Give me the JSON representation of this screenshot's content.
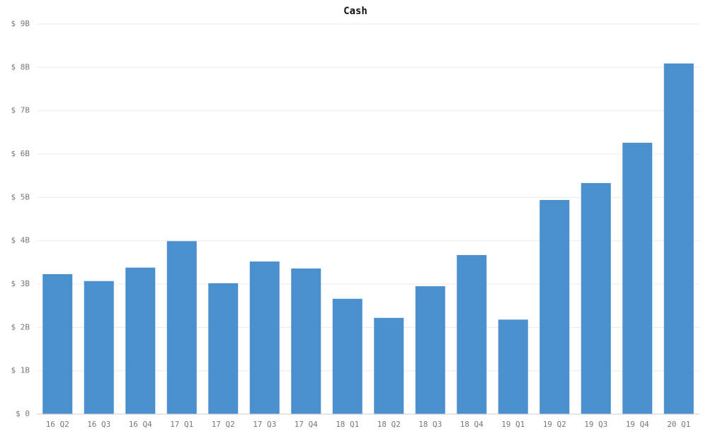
{
  "chart_data": {
    "type": "bar",
    "title": "Cash",
    "categories": [
      "16 Q2",
      "16 Q3",
      "16 Q4",
      "17 Q1",
      "17 Q2",
      "17 Q3",
      "17 Q4",
      "18 Q1",
      "18 Q2",
      "18 Q3",
      "18 Q4",
      "19 Q1",
      "19 Q2",
      "19 Q3",
      "19 Q4",
      "20 Q1"
    ],
    "values": [
      3.23,
      3.07,
      3.38,
      3.99,
      3.02,
      3.52,
      3.36,
      2.66,
      2.22,
      2.95,
      3.67,
      2.18,
      4.94,
      5.33,
      6.26,
      8.09
    ],
    "color": "#4a8fce",
    "ylim": [
      0,
      9
    ],
    "yticks": [
      {
        "value": 0,
        "label": "$ 0"
      },
      {
        "value": 1,
        "label": "$ 1B"
      },
      {
        "value": 2,
        "label": "$ 2B"
      },
      {
        "value": 3,
        "label": "$ 3B"
      },
      {
        "value": 4,
        "label": "$ 4B"
      },
      {
        "value": 5,
        "label": "$ 5B"
      },
      {
        "value": 6,
        "label": "$ 6B"
      },
      {
        "value": 7,
        "label": "$ 7B"
      },
      {
        "value": 8,
        "label": "$ 8B"
      },
      {
        "value": 9,
        "label": "$ 9B"
      }
    ],
    "grid": true
  }
}
